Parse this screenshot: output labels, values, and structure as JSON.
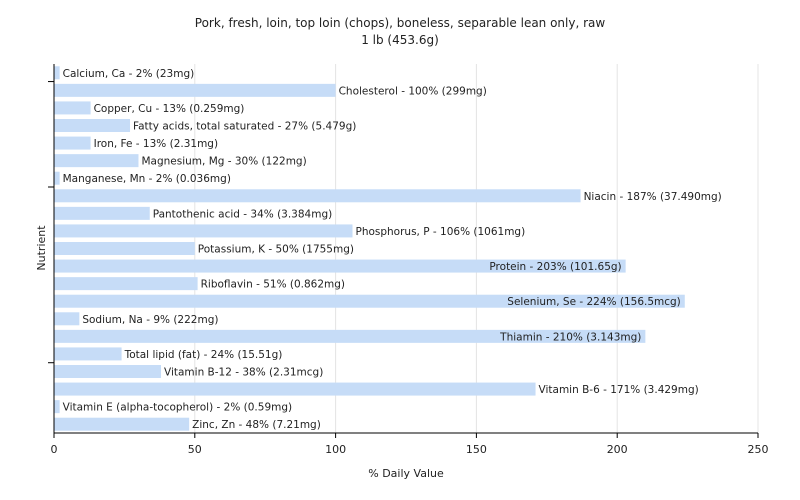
{
  "chart_data": {
    "type": "bar",
    "orientation": "horizontal",
    "title": "Pork, fresh, loin, top loin (chops), boneless, separable lean only, raw",
    "subtitle": "1 lb (453.6g)",
    "xlabel": "% Daily Value",
    "ylabel": "Nutrient",
    "xlim": [
      0,
      250
    ],
    "xticks": [
      0,
      50,
      100,
      150,
      200,
      250
    ],
    "grid": "vertical",
    "bar_color": "#c6dcf7",
    "categories": [
      "Calcium, Ca",
      "Cholesterol",
      "Copper, Cu",
      "Fatty acids, total saturated",
      "Iron, Fe",
      "Magnesium, Mg",
      "Manganese, Mn",
      "Niacin",
      "Pantothenic acid",
      "Phosphorus, P",
      "Potassium, K",
      "Protein",
      "Riboflavin",
      "Selenium, Se",
      "Sodium, Na",
      "Thiamin",
      "Total lipid (fat)",
      "Vitamin B-12",
      "Vitamin B-6",
      "Vitamin E (alpha-tocopherol)",
      "Zinc, Zn"
    ],
    "values": [
      2,
      100,
      13,
      27,
      13,
      30,
      2,
      187,
      34,
      106,
      50,
      203,
      51,
      224,
      9,
      210,
      24,
      38,
      171,
      2,
      48
    ],
    "labels": [
      "Calcium, Ca - 2% (23mg)",
      "Cholesterol - 100% (299mg)",
      "Copper, Cu - 13% (0.259mg)",
      "Fatty acids, total saturated - 27% (5.479g)",
      "Iron, Fe - 13% (2.31mg)",
      "Magnesium, Mg - 30% (122mg)",
      "Manganese, Mn - 2% (0.036mg)",
      "Niacin - 187% (37.490mg)",
      "Pantothenic acid - 34% (3.384mg)",
      "Phosphorus, P - 106% (1061mg)",
      "Potassium, K - 50% (1755mg)",
      "Protein - 203% (101.65g)",
      "Riboflavin - 51% (0.862mg)",
      "Selenium, Se - 224% (156.5mcg)",
      "Sodium, Na - 9% (222mg)",
      "Thiamin - 210% (3.143mg)",
      "Total lipid (fat) - 24% (15.51g)",
      "Vitamin B-12 - 38% (2.31mcg)",
      "Vitamin B-6 - 171% (3.429mg)",
      "Vitamin E (alpha-tocopherol) - 2% (0.59mg)",
      "Zinc, Zn - 48% (7.21mg)"
    ]
  }
}
